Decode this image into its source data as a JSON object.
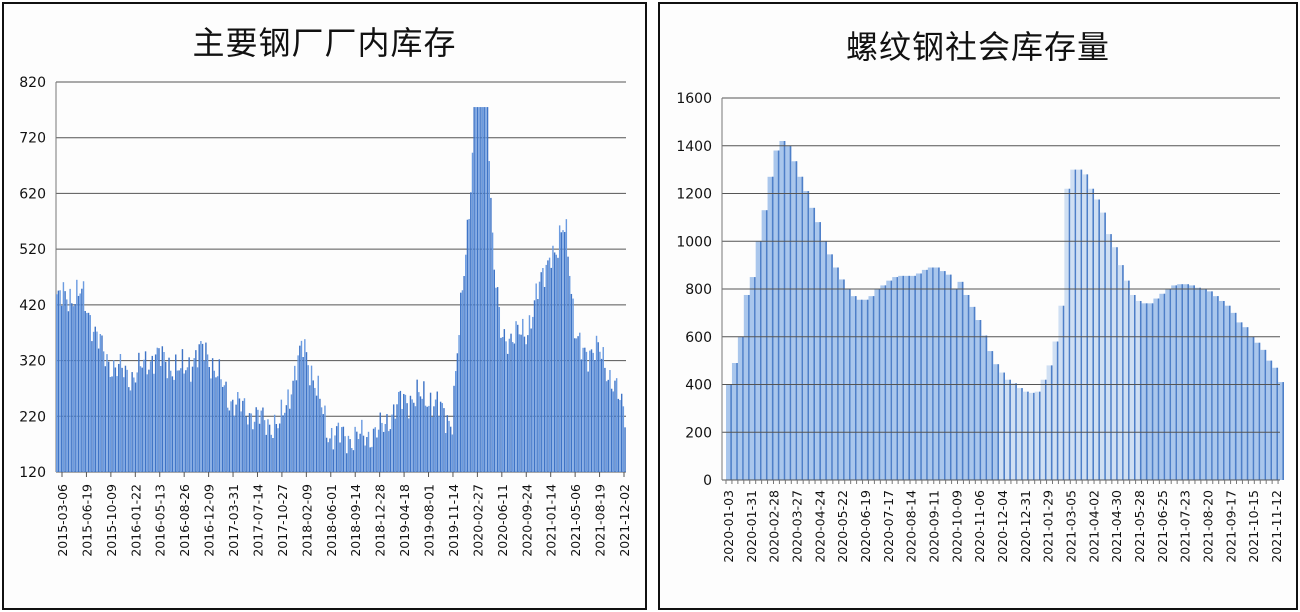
{
  "chart_data": [
    {
      "type": "bar",
      "title": "主要钢厂厂内库存",
      "xlabel": "",
      "ylabel": "",
      "ylim": [
        120,
        820
      ],
      "yticks": [
        120,
        220,
        320,
        420,
        520,
        620,
        720,
        820
      ],
      "grid": true,
      "legend": null,
      "bar_color": "#4a7fcf",
      "categories": [
        "2015-03-06",
        "2015-06-19",
        "2015-10-09",
        "2016-01-22",
        "2016-05-13",
        "2016-08-26",
        "2016-12-09",
        "2017-03-31",
        "2017-07-14",
        "2017-10-27",
        "2018-02-09",
        "2018-06-01",
        "2018-09-14",
        "2018-12-28",
        "2019-04-18",
        "2019-08-01",
        "2019-11-14",
        "2020-02-27",
        "2020-06-11",
        "2020-09-24",
        "2021-01-14",
        "2021-05-06",
        "2021-08-19",
        "2021-12-02"
      ],
      "values": [
        430,
        440,
        320,
        290,
        330,
        300,
        340,
        250,
        220,
        200,
        350,
        190,
        180,
        190,
        250,
        255,
        210,
        770,
        360,
        370,
        520,
        340,
        335,
        225
      ],
      "notes": "Weekly series 2015-03 to 2021-12; values sampled at labeled tick dates; peak ~775 around 2020-03, secondary peak ~525 around 2021-03"
    },
    {
      "type": "bar",
      "title": "螺纹钢社会库存量",
      "xlabel": "",
      "ylabel": "",
      "ylim": [
        0,
        1600
      ],
      "yticks": [
        0,
        200,
        400,
        600,
        800,
        1000,
        1200,
        1400,
        1600
      ],
      "grid": true,
      "legend": null,
      "bar_color": "#8fb4e3",
      "categories": [
        "2020-01-03",
        "2020-01-31",
        "2020-02-28",
        "2020-03-27",
        "2020-04-24",
        "2020-05-22",
        "2020-06-19",
        "2020-07-17",
        "2020-08-14",
        "2020-09-11",
        "2020-10-09",
        "2020-11-06",
        "2020-12-04",
        "2020-12-31",
        "2021-01-29",
        "2021-03-05",
        "2021-04-02",
        "2021-04-30",
        "2021-05-28",
        "2021-06-25",
        "2021-07-23",
        "2021-08-20",
        "2021-09-17",
        "2021-10-15",
        "2021-11-12"
      ],
      "values": [
        400,
        775,
        1380,
        1270,
        1000,
        840,
        755,
        835,
        855,
        890,
        830,
        540,
        420,
        365,
        480,
        1220,
        1110,
        840,
        730,
        790,
        820,
        790,
        700,
        615,
        500
      ],
      "weekly_values": [
        400,
        490,
        600,
        775,
        850,
        1000,
        1130,
        1270,
        1380,
        1420,
        1400,
        1335,
        1270,
        1210,
        1140,
        1080,
        1000,
        945,
        890,
        840,
        800,
        770,
        755,
        755,
        770,
        800,
        815,
        835,
        850,
        855,
        855,
        855,
        865,
        880,
        890,
        890,
        875,
        860,
        800,
        830,
        775,
        725,
        670,
        605,
        540,
        485,
        450,
        420,
        405,
        385,
        370,
        365,
        370,
        420,
        480,
        580,
        730,
        1220,
        1300,
        1300,
        1280,
        1220,
        1175,
        1120,
        1030,
        975,
        900,
        835,
        775,
        750,
        740,
        740,
        760,
        780,
        800,
        815,
        820,
        820,
        815,
        805,
        800,
        790,
        770,
        750,
        730,
        700,
        660,
        640,
        600,
        575,
        545,
        500,
        470,
        410
      ]
    }
  ],
  "charts": {
    "left": {
      "title": "主要钢厂厂内库存",
      "y_ticks": [
        "820",
        "720",
        "620",
        "520",
        "420",
        "320",
        "220",
        "120"
      ],
      "x_ticks": [
        "2015-03-06",
        "2015-06-19",
        "2015-10-09",
        "2016-01-22",
        "2016-05-13",
        "2016-08-26",
        "2016-12-09",
        "2017-03-31",
        "2017-07-14",
        "2017-10-27",
        "2018-02-09",
        "2018-06-01",
        "2018-09-14",
        "2018-12-28",
        "2019-04-18",
        "2019-08-01",
        "2019-11-14",
        "2020-02-27",
        "2020-06-11",
        "2020-09-24",
        "2021-01-14",
        "2021-05-06",
        "2021-08-19",
        "2021-12-02"
      ]
    },
    "right": {
      "title": "螺纹钢社会库存量",
      "y_ticks": [
        "1600",
        "1400",
        "1200",
        "1000",
        "800",
        "600",
        "400",
        "200",
        "0"
      ],
      "x_ticks": [
        "2020-01-03",
        "2020-01-31",
        "2020-02-28",
        "2020-03-27",
        "2020-04-24",
        "2020-05-22",
        "2020-06-19",
        "2020-07-17",
        "2020-08-14",
        "2020-09-11",
        "2020-10-09",
        "2020-11-06",
        "2020-12-04",
        "2020-12-31",
        "2021-01-29",
        "2021-03-05",
        "2021-04-02",
        "2021-04-30",
        "2021-05-28",
        "2021-06-25",
        "2021-07-23",
        "2021-08-20",
        "2021-09-17",
        "2021-10-15",
        "2021-11-12"
      ]
    }
  }
}
